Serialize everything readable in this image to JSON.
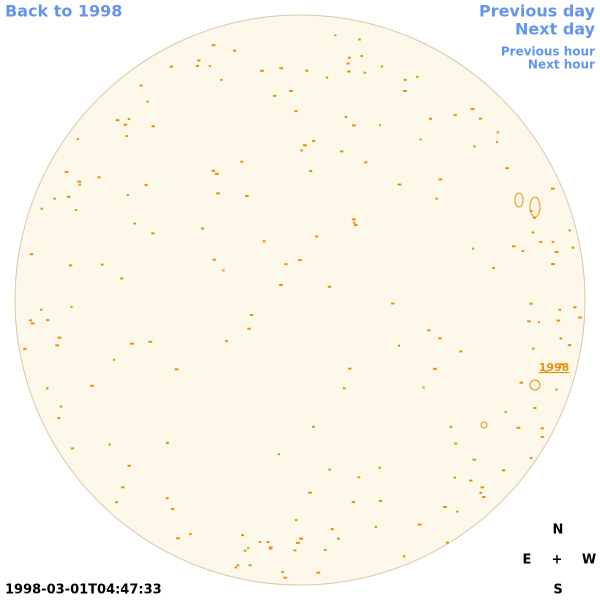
{
  "nav": {
    "back": "Back to 1998",
    "previous_day": "Previous day",
    "next_day": "Next day",
    "previous_hour": "Previous hour",
    "next_hour": "Next hour"
  },
  "disk": {
    "region_label": "1998"
  },
  "timestamp": "1998-03-01T04:47:33",
  "compass": {
    "north": "N",
    "east": "E",
    "center": "+",
    "west": "W",
    "south": "S"
  }
}
